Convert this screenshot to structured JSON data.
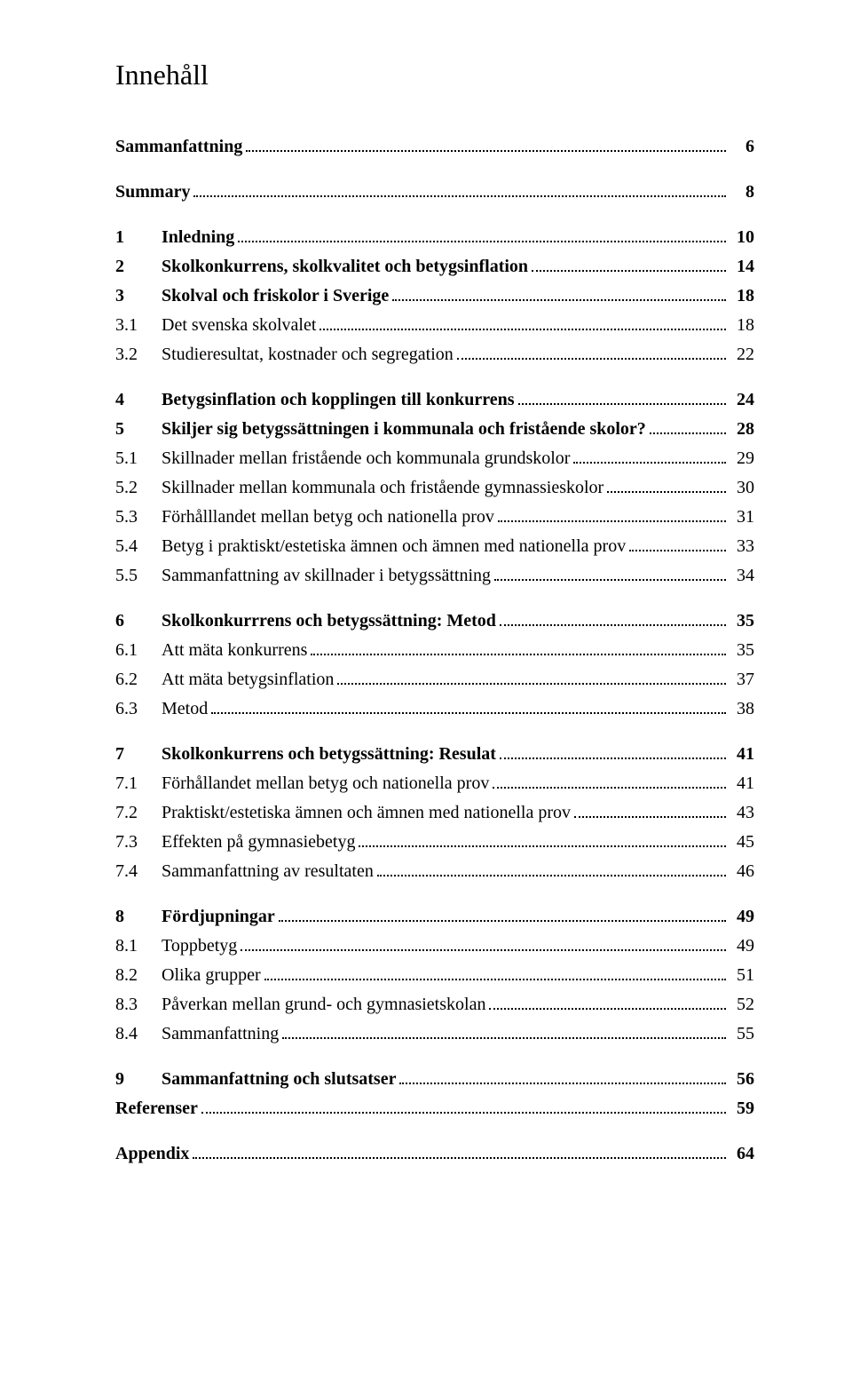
{
  "title": "Innehåll",
  "entries": [
    {
      "type": "simple",
      "label": "Sammanfattning",
      "page": "6",
      "gap": true
    },
    {
      "type": "simple",
      "label": "Summary",
      "page": "8",
      "gap": true
    },
    {
      "type": "section",
      "num": "1",
      "label": "Inledning",
      "page": "10",
      "gap": true
    },
    {
      "type": "section",
      "num": "2",
      "label": "Skolkonkurrens, skolkvalitet och betygsinflation",
      "page": "14",
      "gap": true
    },
    {
      "type": "section",
      "num": "3",
      "label": "Skolval och friskolor i Sverige",
      "page": "18",
      "gap": true
    },
    {
      "type": "sub",
      "num": "3.1",
      "label": "Det svenska skolvalet",
      "page": "18"
    },
    {
      "type": "sub",
      "num": "3.2",
      "label": "Studieresultat, kostnader och segregation",
      "page": "22"
    },
    {
      "type": "section",
      "num": "4",
      "label": "Betygsinflation och kopplingen till konkurrens",
      "page": "24",
      "gap": true
    },
    {
      "type": "section",
      "num": "5",
      "label": "Skiljer sig betygssättningen i kommunala och fristående skolor?",
      "page": "28",
      "gap": true
    },
    {
      "type": "sub",
      "num": "5.1",
      "label": "Skillnader mellan fristående och kommunala grundskolor",
      "page": "29"
    },
    {
      "type": "sub",
      "num": "5.2",
      "label": "Skillnader mellan kommunala och fristående gymnassieskolor",
      "page": "30"
    },
    {
      "type": "sub",
      "num": "5.3",
      "label": "Förhålllandet mellan betyg och nationella prov",
      "page": "31"
    },
    {
      "type": "sub",
      "num": "5.4",
      "label": "Betyg i praktiskt/estetiska ämnen och ämnen med nationella prov",
      "page": "33"
    },
    {
      "type": "sub",
      "num": "5.5",
      "label": "Sammanfattning av skillnader i betygssättning",
      "page": "34"
    },
    {
      "type": "section",
      "num": "6",
      "label": "Skolkonkurrrens och betygssättning: Metod",
      "page": "35",
      "gap": true
    },
    {
      "type": "sub",
      "num": "6.1",
      "label": "Att mäta konkurrens",
      "page": "35"
    },
    {
      "type": "sub",
      "num": "6.2",
      "label": "Att mäta betygsinflation",
      "page": "37"
    },
    {
      "type": "sub",
      "num": "6.3",
      "label": "Metod",
      "page": "38"
    },
    {
      "type": "section",
      "num": "7",
      "label": "Skolkonkurrens och betygssättning: Resulat",
      "page": "41",
      "gap": true
    },
    {
      "type": "sub",
      "num": "7.1",
      "label": "Förhållandet mellan betyg och nationella prov",
      "page": "41"
    },
    {
      "type": "sub",
      "num": "7.2",
      "label": "Praktiskt/estetiska ämnen och ämnen med nationella prov",
      "page": "43"
    },
    {
      "type": "sub",
      "num": "7.3",
      "label": "Effekten på gymnasiebetyg",
      "page": "45"
    },
    {
      "type": "sub",
      "num": "7.4",
      "label": "Sammanfattning av resultaten",
      "page": "46"
    },
    {
      "type": "section",
      "num": "8",
      "label": "Fördjupningar",
      "page": "49",
      "gap": true
    },
    {
      "type": "sub",
      "num": "8.1",
      "label": "Toppbetyg",
      "page": "49"
    },
    {
      "type": "sub",
      "num": "8.2",
      "label": "Olika grupper",
      "page": "51"
    },
    {
      "type": "sub",
      "num": "8.3",
      "label": "Påverkan mellan grund- och gymnasietskolan",
      "page": "52"
    },
    {
      "type": "sub",
      "num": "8.4",
      "label": "Sammanfattning",
      "page": "55"
    },
    {
      "type": "section",
      "num": "9",
      "label": "Sammanfattning och slutsatser",
      "page": "56",
      "gap": true
    },
    {
      "type": "simple",
      "label": "Referenser",
      "page": "59",
      "gap": true
    },
    {
      "type": "simple",
      "label": "Appendix",
      "page": "64",
      "gap": true
    }
  ]
}
